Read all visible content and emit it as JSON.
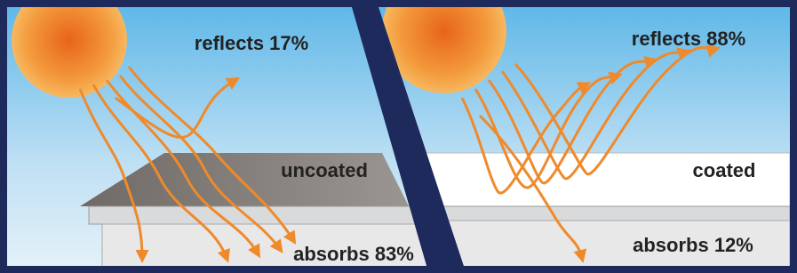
{
  "panels": [
    {
      "reflects": "reflects 17%",
      "surface": "uncoated",
      "absorbs": "absorbs 83%"
    },
    {
      "reflects": "reflects 88%",
      "surface": "coated",
      "absorbs": "absorbs 12%"
    }
  ]
}
